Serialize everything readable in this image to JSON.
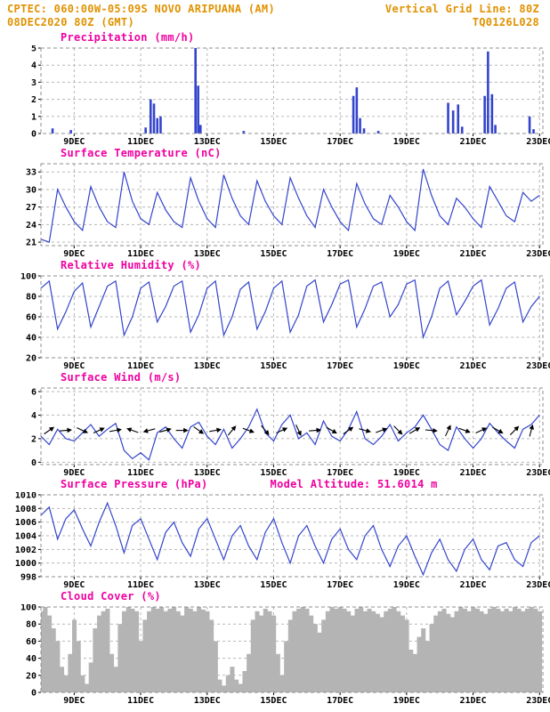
{
  "header": {
    "line1_left": "CPTEC:  060:00W-05:09S  NOVO ARIPUANA (AM)",
    "line1_right": "Vertical Grid Line: 80Z",
    "line2_left": "08DEC2020 80Z (GMT)",
    "line2_right": "TQ0126L028"
  },
  "colors": {
    "header_orange": "#e09200",
    "title_magenta": "#f000a0",
    "line_blue": "#3344cc",
    "cloud_gray": "#b4b4b4"
  },
  "chart_data": [
    {
      "type": "bar",
      "title": "Precipitation (mm/h)",
      "xlim": [
        8,
        23.1
      ],
      "ylim": [
        0,
        5
      ],
      "yticks": [
        0,
        1,
        2,
        3,
        4,
        5
      ],
      "xticks": [
        9,
        11,
        13,
        15,
        17,
        19,
        21,
        23
      ],
      "xtick_suffix": "DEC",
      "bars": [
        [
          8.35,
          0.3
        ],
        [
          8.9,
          0.2
        ],
        [
          11.15,
          0.35
        ],
        [
          11.3,
          2.0
        ],
        [
          11.4,
          1.75
        ],
        [
          11.5,
          0.9
        ],
        [
          11.6,
          1.0
        ],
        [
          12.65,
          5.0
        ],
        [
          12.73,
          2.8
        ],
        [
          12.8,
          0.5
        ],
        [
          14.1,
          0.15
        ],
        [
          17.4,
          2.2
        ],
        [
          17.5,
          2.7
        ],
        [
          17.6,
          0.9
        ],
        [
          17.72,
          0.3
        ],
        [
          18.15,
          0.15
        ],
        [
          20.25,
          1.8
        ],
        [
          20.4,
          1.35
        ],
        [
          20.55,
          1.7
        ],
        [
          20.67,
          0.4
        ],
        [
          21.35,
          2.2
        ],
        [
          21.45,
          4.8
        ],
        [
          21.57,
          2.3
        ],
        [
          21.67,
          0.5
        ],
        [
          22.7,
          1.0
        ],
        [
          22.82,
          0.25
        ]
      ]
    },
    {
      "type": "line",
      "title": "Surface Temperature (nC)",
      "xlim": [
        8,
        23.1
      ],
      "ylim": [
        20.4,
        34.4
      ],
      "yticks": [
        21,
        24,
        27,
        30,
        33
      ],
      "xticks": [
        9,
        11,
        13,
        15,
        17,
        19,
        21,
        23
      ],
      "xtick_suffix": "DEC",
      "series": {
        "x_start": 8,
        "x_step": 0.25,
        "values": [
          21.5,
          21.0,
          30.0,
          27.0,
          24.5,
          23.0,
          30.5,
          27.0,
          24.5,
          23.5,
          33.0,
          28.0,
          25.0,
          24.0,
          29.5,
          26.5,
          24.5,
          23.5,
          32.0,
          28.0,
          25.0,
          23.5,
          32.5,
          28.5,
          25.5,
          24.0,
          31.5,
          28.0,
          25.5,
          24.0,
          32.0,
          28.5,
          25.5,
          23.5,
          30.0,
          27.0,
          24.5,
          23.0,
          31.0,
          27.5,
          25.0,
          24.0,
          29.0,
          27.0,
          24.5,
          23.0,
          33.5,
          29.0,
          25.5,
          24.0,
          28.5,
          27.0,
          25.0,
          23.5,
          30.5,
          28.0,
          25.5,
          24.5,
          29.5,
          28.0,
          29.0
        ]
      }
    },
    {
      "type": "line",
      "title": "Relative Humidity (%)",
      "xlim": [
        8,
        23.1
      ],
      "ylim": [
        20,
        100
      ],
      "yticks": [
        20,
        40,
        60,
        80,
        100
      ],
      "xticks": [
        9,
        11,
        13,
        15,
        17,
        19,
        21,
        23
      ],
      "xtick_suffix": "DEC",
      "series": {
        "x_start": 8,
        "x_step": 0.25,
        "values": [
          88,
          95,
          48,
          65,
          85,
          93,
          50,
          70,
          90,
          95,
          42,
          60,
          88,
          94,
          55,
          70,
          90,
          95,
          45,
          62,
          88,
          95,
          42,
          60,
          87,
          94,
          48,
          65,
          88,
          95,
          45,
          62,
          90,
          96,
          55,
          72,
          92,
          96,
          50,
          68,
          90,
          94,
          60,
          72,
          92,
          96,
          40,
          60,
          88,
          95,
          62,
          75,
          90,
          96,
          52,
          68,
          88,
          94,
          55,
          70,
          80
        ]
      }
    },
    {
      "type": "line",
      "title": "Surface Wind (m/s)",
      "xlim": [
        8,
        23.1
      ],
      "ylim": [
        -0.2,
        6.3
      ],
      "yticks": [
        0,
        2,
        4,
        6
      ],
      "xticks": [
        9,
        11,
        13,
        15,
        17,
        19,
        21,
        23
      ],
      "xtick_suffix": "DEC",
      "arrow_y": 2.7,
      "arrows": [
        [
          8.25,
          35
        ],
        [
          8.75,
          5
        ],
        [
          9.25,
          -25
        ],
        [
          9.75,
          25
        ],
        [
          10.25,
          10
        ],
        [
          10.75,
          160
        ],
        [
          11.25,
          195
        ],
        [
          11.75,
          15
        ],
        [
          12.25,
          0
        ],
        [
          12.75,
          -35
        ],
        [
          13.25,
          10
        ],
        [
          13.75,
          50
        ],
        [
          14.25,
          -20
        ],
        [
          14.75,
          -50
        ],
        [
          15.25,
          25
        ],
        [
          15.75,
          -65
        ],
        [
          16.25,
          5
        ],
        [
          16.75,
          -30
        ],
        [
          17.25,
          35
        ],
        [
          17.75,
          -15
        ],
        [
          18.25,
          20
        ],
        [
          18.75,
          -45
        ],
        [
          19.25,
          30
        ],
        [
          19.75,
          -5
        ],
        [
          20.25,
          65
        ],
        [
          20.75,
          -20
        ],
        [
          21.25,
          25
        ],
        [
          21.75,
          -30
        ],
        [
          22.25,
          45
        ],
        [
          22.75,
          75
        ]
      ],
      "series": {
        "x_start": 8,
        "x_step": 0.25,
        "values": [
          2.2,
          1.5,
          2.8,
          2.0,
          1.8,
          2.5,
          3.2,
          2.2,
          2.8,
          3.3,
          1.0,
          0.3,
          0.8,
          0.2,
          2.5,
          3.0,
          2.0,
          1.2,
          3.0,
          3.4,
          2.2,
          1.5,
          2.8,
          1.2,
          2.0,
          3.0,
          4.5,
          2.5,
          1.8,
          3.2,
          4.0,
          2.0,
          2.5,
          1.5,
          3.5,
          2.2,
          1.8,
          2.8,
          4.3,
          2.0,
          1.5,
          2.2,
          3.2,
          1.8,
          2.5,
          3.0,
          4.0,
          2.8,
          1.5,
          1.0,
          3.0,
          2.0,
          1.2,
          2.0,
          3.3,
          2.5,
          1.8,
          1.2,
          2.8,
          3.2,
          4.0
        ]
      }
    },
    {
      "type": "line",
      "title": "Surface Pressure (hPa)",
      "subtitle": "Model Altitude: 51.6014 m",
      "xlim": [
        8,
        23.1
      ],
      "ylim": [
        998,
        1010
      ],
      "yticks": [
        998,
        1000,
        1002,
        1004,
        1006,
        1008,
        1010
      ],
      "xticks": [
        9,
        11,
        13,
        15,
        17,
        19,
        21,
        23
      ],
      "xtick_suffix": "DEC",
      "series": {
        "x_start": 8,
        "x_step": 0.25,
        "values": [
          1007.0,
          1008.2,
          1003.5,
          1006.5,
          1007.8,
          1005.0,
          1002.5,
          1006.0,
          1008.8,
          1005.5,
          1001.5,
          1005.5,
          1006.5,
          1003.5,
          1000.5,
          1004.5,
          1006.0,
          1003.0,
          1001.0,
          1005.0,
          1006.5,
          1003.5,
          1000.5,
          1004.0,
          1005.5,
          1002.5,
          1000.5,
          1004.5,
          1006.5,
          1003.0,
          1000.0,
          1004.0,
          1005.5,
          1002.5,
          1000.0,
          1003.5,
          1005.0,
          1002.0,
          1000.5,
          1004.0,
          1005.5,
          1002.0,
          999.5,
          1002.5,
          1004.0,
          1001.0,
          998.3,
          1001.5,
          1003.5,
          1000.5,
          998.8,
          1002.0,
          1003.5,
          1000.5,
          999.0,
          1002.5,
          1003.0,
          1000.5,
          999.5,
          1003.0,
          1004.0
        ]
      }
    },
    {
      "type": "area-bars",
      "title": "Cloud Cover (%)",
      "xlim": [
        8,
        23.1
      ],
      "ylim": [
        0,
        100
      ],
      "yticks": [
        0,
        20,
        40,
        60,
        80,
        100
      ],
      "xticks": [
        9,
        11,
        13,
        15,
        17,
        19,
        21,
        23
      ],
      "xtick_suffix": "DEC",
      "series": {
        "x_start": 8,
        "x_step": 0.125,
        "values": [
          95,
          100,
          90,
          75,
          60,
          30,
          20,
          45,
          85,
          60,
          20,
          10,
          35,
          75,
          90,
          95,
          98,
          45,
          30,
          80,
          95,
          100,
          98,
          95,
          60,
          85,
          95,
          100,
          98,
          100,
          95,
          98,
          100,
          95,
          90,
          100,
          98,
          95,
          100,
          97,
          95,
          85,
          60,
          15,
          8,
          20,
          30,
          15,
          10,
          25,
          45,
          85,
          95,
          90,
          98,
          95,
          90,
          45,
          20,
          60,
          85,
          95,
          98,
          100,
          98,
          90,
          80,
          70,
          85,
          95,
          100,
          98,
          100,
          98,
          95,
          90,
          98,
          100,
          95,
          98,
          95,
          92,
          88,
          95,
          98,
          100,
          95,
          90,
          85,
          50,
          45,
          65,
          75,
          60,
          80,
          90,
          95,
          98,
          92,
          88,
          95,
          100,
          98,
          95,
          100,
          98,
          95,
          92,
          98,
          100,
          98,
          95,
          98,
          95,
          100,
          98,
          95,
          98,
          100,
          98,
          95
        ]
      }
    }
  ]
}
